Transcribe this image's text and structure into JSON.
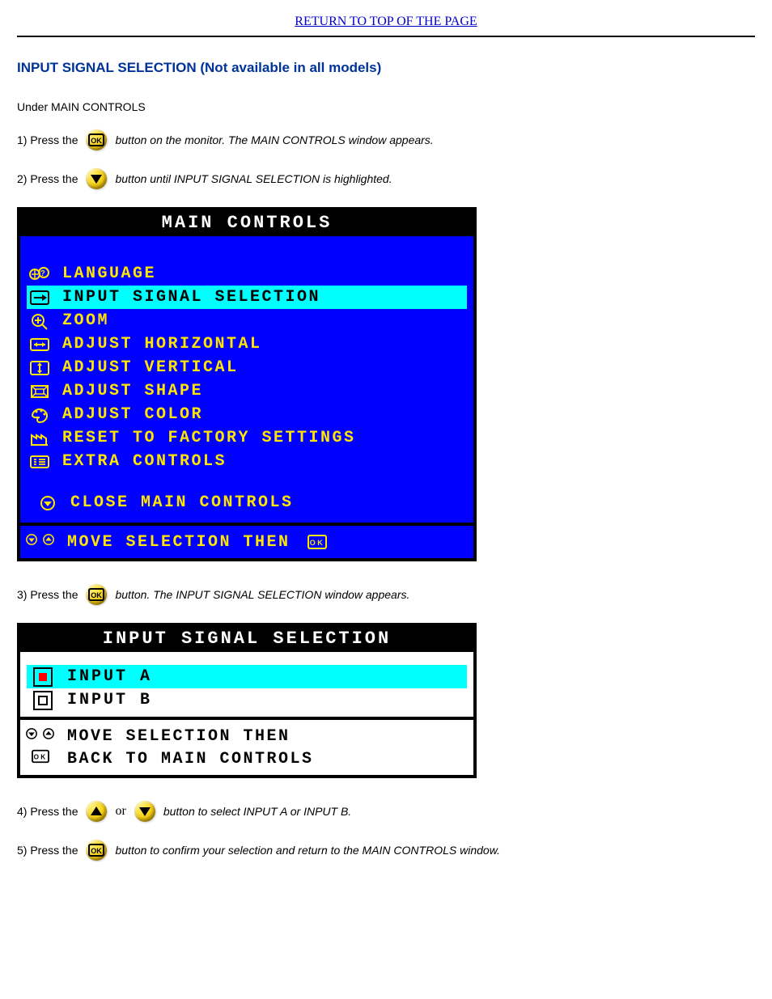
{
  "colors": {
    "link": "#0000cc",
    "heading": "#003399",
    "osd_border": "#000000",
    "osd_title_bg": "#000000",
    "osd_title_fg": "#ffffff",
    "osd_blue_bg": "#0000ff",
    "osd_blue_fg": "#ffe600",
    "osd_highlight_bg": "#00ffff",
    "osd_highlight_fg": "#000000",
    "osd_white_bg": "#ffffff",
    "osd_white_fg": "#000000",
    "button_face": "#f6cf10",
    "input_a_indicator": "#ff0000"
  },
  "top_link": "RETURN TO TOP OF THE PAGE",
  "section_title": "INPUT SIGNAL SELECTION (Not available in all models)",
  "intro": "Under MAIN CONTROLS",
  "steps": {
    "s1": {
      "num": "1) Press the",
      "btn_label": " button on the monitor. The MAIN CONTROLS window appears."
    },
    "s2": {
      "num": "2) Press the",
      "btn_label": " button until INPUT SIGNAL SELECTION is highlighted."
    },
    "s3": {
      "num": "3) Press the",
      "btn_label": " button. The INPUT SIGNAL SELECTION window appears."
    },
    "s4": {
      "num": "4) Press the",
      "or": " or ",
      "btn_label": " button to select INPUT A or INPUT B."
    },
    "s5": {
      "num": "5) Press the",
      "btn_label": " button to confirm your selection and return to the MAIN CONTROLS window."
    }
  },
  "osd_main": {
    "title": "MAIN CONTROLS",
    "items": [
      {
        "icon": "globe-question",
        "label": "LANGUAGE",
        "highlighted": false
      },
      {
        "icon": "arrow-in",
        "label": "INPUT SIGNAL SELECTION",
        "highlighted": true
      },
      {
        "icon": "magnifier-plus",
        "label": "ZOOM",
        "highlighted": false
      },
      {
        "icon": "arrows-h",
        "label": "ADJUST HORIZONTAL",
        "highlighted": false
      },
      {
        "icon": "arrows-v",
        "label": "ADJUST VERTICAL",
        "highlighted": false
      },
      {
        "icon": "shape",
        "label": "ADJUST SHAPE",
        "highlighted": false
      },
      {
        "icon": "palette",
        "label": "ADJUST COLOR",
        "highlighted": false
      },
      {
        "icon": "factory",
        "label": "RESET TO FACTORY SETTINGS",
        "highlighted": false
      },
      {
        "icon": "list-extra",
        "label": "EXTRA CONTROLS",
        "highlighted": false
      }
    ],
    "close": {
      "icon": "circle-down",
      "label": "CLOSE MAIN CONTROLS"
    },
    "footer": {
      "line1": "MOVE SELECTION THEN"
    }
  },
  "osd_input": {
    "title": "INPUT SIGNAL SELECTION",
    "items": [
      {
        "label": "INPUT A",
        "selected": true,
        "highlighted": true
      },
      {
        "label": "INPUT B",
        "selected": false,
        "highlighted": false
      }
    ],
    "footer": {
      "line1": "MOVE SELECTION THEN",
      "line2": "BACK TO MAIN CONTROLS"
    }
  }
}
